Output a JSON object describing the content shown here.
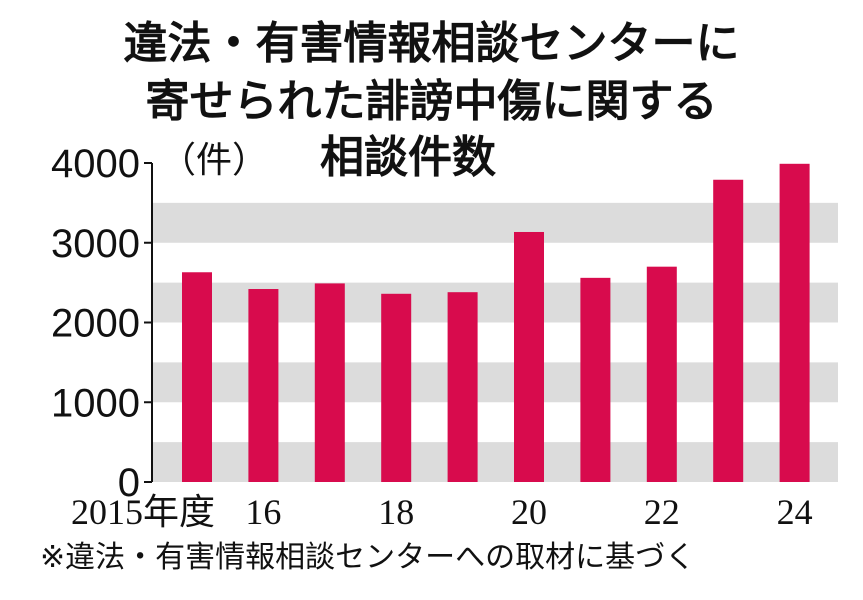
{
  "chart_data": {
    "type": "bar",
    "title": [
      "違法・有害情報相談センターに",
      "寄せられた誹謗中傷に関する",
      "相談件数"
    ],
    "ylabel": "（件）",
    "categories": [
      "2015",
      "2016",
      "2017",
      "2018",
      "2019",
      "2020",
      "2021",
      "2022",
      "2023",
      "2024"
    ],
    "values": [
      2630,
      2420,
      2490,
      2360,
      2380,
      3135,
      2560,
      2700,
      3790,
      3990
    ],
    "x_tick_labels": [
      "2015年度",
      "16",
      "",
      "18",
      "",
      "20",
      "",
      "22",
      "",
      "24"
    ],
    "y_ticks": [
      0,
      1000,
      2000,
      3000,
      4000
    ],
    "ylim": [
      0,
      4000
    ],
    "bar_color": "#d80b4d",
    "band_color": "#dcdcdc",
    "source": "※違法・有害情報相談センターへの取材に基づく"
  }
}
